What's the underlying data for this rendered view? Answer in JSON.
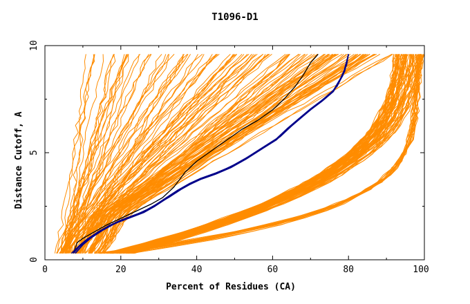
{
  "chart_data": {
    "type": "line",
    "title": "T1096-D1",
    "xlabel": "Percent of Residues (CA)",
    "ylabel": "Distance Cutoff, A",
    "xlim": [
      0,
      100
    ],
    "ylim": [
      0,
      10
    ],
    "xticks": [
      "0",
      "20",
      "40",
      "60",
      "80",
      "100"
    ],
    "yticks": [
      "0",
      "5",
      "10"
    ],
    "grid": false,
    "colors": {
      "background_models": "#ff8c00",
      "highlighted_models": "#00008b",
      "reference_model": "#000000"
    },
    "series": [
      {
        "group": "reference_model",
        "color": "#000000",
        "x": [
          7.5,
          8.5,
          10,
          13,
          16,
          19,
          22,
          25,
          28,
          31,
          34,
          37,
          40,
          44,
          48,
          52,
          56,
          60,
          63,
          66,
          68,
          70,
          72
        ],
        "y": [
          0.3,
          0.8,
          1.0,
          1.3,
          1.6,
          1.85,
          2.1,
          2.35,
          2.6,
          2.9,
          3.4,
          4.1,
          4.6,
          5.1,
          5.6,
          6.1,
          6.5,
          7.0,
          7.5,
          8.1,
          8.6,
          9.2,
          9.6
        ]
      },
      {
        "group": "highlighted_models",
        "color": "#00008b",
        "x": [
          7.5,
          9,
          11,
          14,
          17,
          20,
          23,
          26,
          29,
          32,
          35,
          38,
          41,
          45,
          49,
          53,
          57,
          61,
          64,
          67,
          70,
          73,
          76,
          78,
          79.5,
          80
        ],
        "y": [
          0.3,
          0.6,
          0.9,
          1.3,
          1.6,
          1.85,
          2.05,
          2.25,
          2.55,
          2.9,
          3.25,
          3.55,
          3.8,
          4.05,
          4.35,
          4.75,
          5.2,
          5.65,
          6.15,
          6.6,
          7.05,
          7.45,
          7.9,
          8.5,
          9.1,
          9.6
        ]
      },
      {
        "group": "highlighted_models",
        "color": "#00008b",
        "x": [
          8,
          10,
          12,
          15,
          18,
          21,
          24,
          27,
          30,
          33,
          36,
          39,
          42,
          46,
          50,
          54,
          58,
          62,
          65,
          68,
          71,
          74,
          77,
          79,
          80
        ],
        "y": [
          0.3,
          0.7,
          1.0,
          1.35,
          1.65,
          1.9,
          2.1,
          2.35,
          2.65,
          2.95,
          3.3,
          3.6,
          3.85,
          4.1,
          4.45,
          4.85,
          5.3,
          5.75,
          6.25,
          6.7,
          7.15,
          7.55,
          8.1,
          8.8,
          9.6
        ]
      },
      {
        "group": "highlighted_models",
        "color": "#00008b",
        "x": [
          7,
          9,
          11,
          14,
          17,
          20,
          23,
          26,
          29,
          32,
          35,
          38,
          41,
          45,
          49,
          53,
          57,
          61,
          64,
          67,
          70,
          73,
          76,
          78.5,
          80
        ],
        "y": [
          0.3,
          0.65,
          0.95,
          1.3,
          1.6,
          1.8,
          2.0,
          2.2,
          2.5,
          2.85,
          3.2,
          3.5,
          3.75,
          4.0,
          4.3,
          4.7,
          5.15,
          5.6,
          6.1,
          6.55,
          7.0,
          7.4,
          7.85,
          8.6,
          9.6
        ]
      }
    ],
    "generated_families": [
      {
        "group": "background_models",
        "color": "#ff8c00",
        "count": 60,
        "x_start": [
          3,
          10
        ],
        "x_end": [
          10,
          60
        ],
        "y_start": 0.3,
        "y_end": 9.6,
        "shape": "steep"
      },
      {
        "group": "background_models",
        "color": "#ff8c00",
        "count": 60,
        "x_start": [
          8,
          16
        ],
        "x_end": [
          62,
          92
        ],
        "y_start": 0.3,
        "y_end": 9.6,
        "shape": "concave"
      },
      {
        "group": "background_models",
        "color": "#ff8c00",
        "count": 70,
        "x_start": [
          10,
          18
        ],
        "x_end": [
          92,
          100
        ],
        "y_start": 0.3,
        "y_end": 9.6,
        "shape": "flat-then-steep"
      },
      {
        "group": "background_models",
        "color": "#ff8c00",
        "count": 14,
        "x_start": [
          12,
          22
        ],
        "x_end": [
          98,
          100
        ],
        "y_start": 0.3,
        "y_end": 9.6,
        "shape": "very-flat"
      }
    ]
  }
}
